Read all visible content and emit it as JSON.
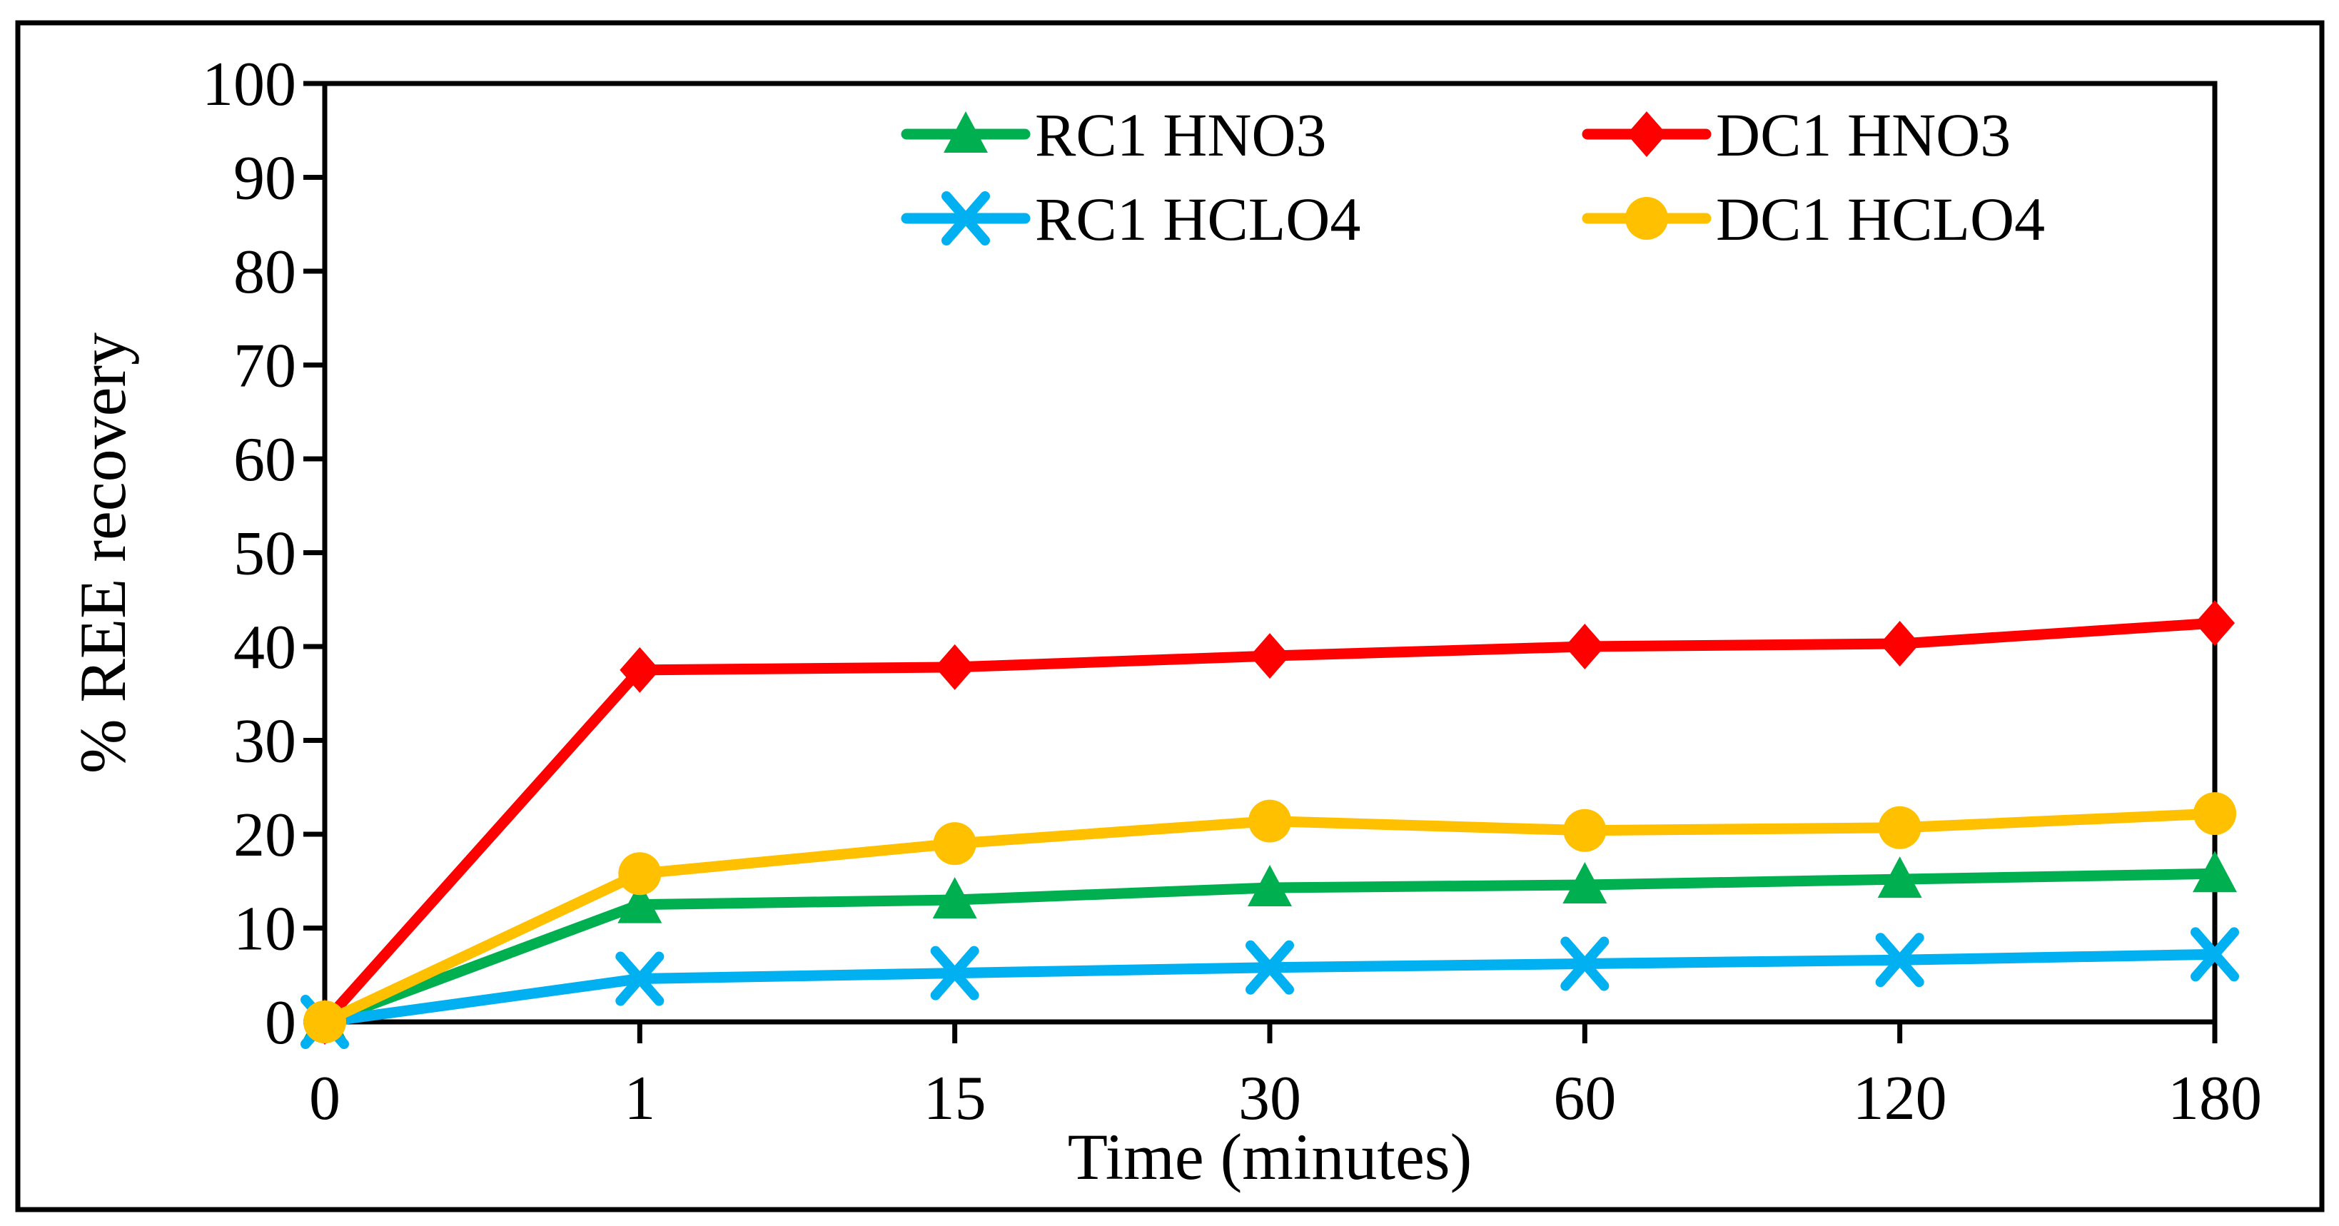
{
  "figure": {
    "background_color": "#ffffff",
    "frame_color": "#000000",
    "axis_color": "#000000",
    "text_color": "#000000"
  },
  "chart_data": {
    "type": "line",
    "title": "",
    "xlabel": "Time (minutes)",
    "ylabel": "% REE recovery",
    "categories": [
      "0",
      "1",
      "15",
      "30",
      "60",
      "120",
      "180"
    ],
    "x_spacing": "categorical-even",
    "ylim": [
      0,
      100
    ],
    "y_tick_step": 10,
    "y_tick_labels": [
      "0",
      "10",
      "20",
      "30",
      "40",
      "50",
      "60",
      "70",
      "80",
      "90",
      "100"
    ],
    "grid": "off",
    "legend": {
      "position": "top-inside",
      "columns": 2,
      "row_major_order": [
        "RC1 HNO3",
        "DC1 HNO3",
        "RC1 HCLO4",
        "DC1 HCLO4"
      ]
    },
    "series": [
      {
        "name": "RC1 HNO3",
        "color": "#00B050",
        "marker": "triangle",
        "values": [
          0,
          12.5,
          13.0,
          14.3,
          14.6,
          15.2,
          15.8
        ]
      },
      {
        "name": "DC1 HNO3",
        "color": "#FF0000",
        "marker": "diamond",
        "values": [
          0,
          37.5,
          37.8,
          39.0,
          40.0,
          40.3,
          42.5
        ]
      },
      {
        "name": "RC1 HCLO4",
        "color": "#00B0F0",
        "marker": "x",
        "values": [
          0,
          4.6,
          5.2,
          5.8,
          6.2,
          6.6,
          7.2
        ]
      },
      {
        "name": "DC1 HCLO4",
        "color": "#FFC000",
        "marker": "circle",
        "values": [
          0,
          15.8,
          19.0,
          21.4,
          20.4,
          20.7,
          22.2
        ]
      }
    ]
  }
}
